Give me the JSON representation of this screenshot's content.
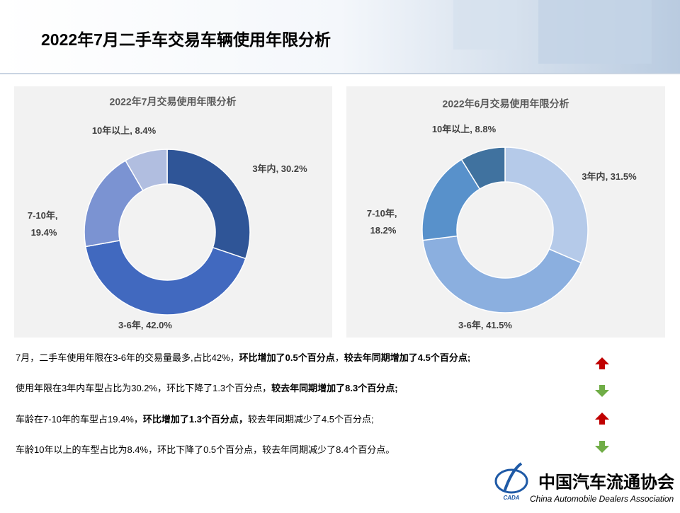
{
  "header": {
    "title": "2022年7月二手车交易车辆使用年限分析"
  },
  "chart_data": [
    {
      "type": "pie",
      "donut": true,
      "title": "2022年7月交易使用年限分析",
      "categories": [
        "3年内",
        "3-6年",
        "7-10年",
        "10年以上"
      ],
      "values": [
        30.2,
        42.0,
        19.4,
        8.4
      ],
      "value_labels": [
        "30.2%",
        "42.0%",
        "19.4%",
        "8.4%"
      ],
      "separator": ", ",
      "colors": [
        "#2f5597",
        "#4169bf",
        "#7b93d2",
        "#b1bee0"
      ]
    },
    {
      "type": "pie",
      "donut": true,
      "title": "2022年6月交易使用年限分析",
      "categories": [
        "3年内",
        "3-6年",
        "7-10年",
        "10年以上"
      ],
      "values": [
        31.5,
        41.5,
        18.2,
        8.8
      ],
      "value_labels": [
        "31.5%",
        "41.5%",
        "18.2%",
        "8.8%"
      ],
      "separator": ", ",
      "colors": [
        "#b5cae9",
        "#8bafdf",
        "#5891cb",
        "#40729f"
      ]
    }
  ],
  "notes": [
    [
      {
        "text": "7月，二手车使用年限在3-6年的交易量最多,占比42%，",
        "bold": false
      },
      {
        "text": "环比增加了0.5个百分点",
        "bold": true
      },
      {
        "text": "，",
        "bold": false
      },
      {
        "text": "较去年同期增加了4.5个百分点;",
        "bold": true
      }
    ],
    [
      {
        "text": "使用年限在3年内车型占比为30.2%，环比下降了1.3个百分点，",
        "bold": false
      },
      {
        "text": "较去年同期增加了8.3个百分点;",
        "bold": true
      }
    ],
    [
      {
        "text": "车龄在7-10年的车型占19.4%，",
        "bold": false
      },
      {
        "text": "环比增加了1.3个百分点，",
        "bold": true
      },
      {
        "text": "较去年同期减少了4.5个百分点;",
        "bold": false
      }
    ],
    [
      {
        "text": "车龄10年以上的车型占比为8.4%，环比下降了0.5个百分点，较去年同期减少了8.4个百分点。",
        "bold": false
      }
    ]
  ],
  "logo": {
    "name": "中国汽车流通协会",
    "english": "China Automobile Dealers Association",
    "mark": "CADA"
  }
}
